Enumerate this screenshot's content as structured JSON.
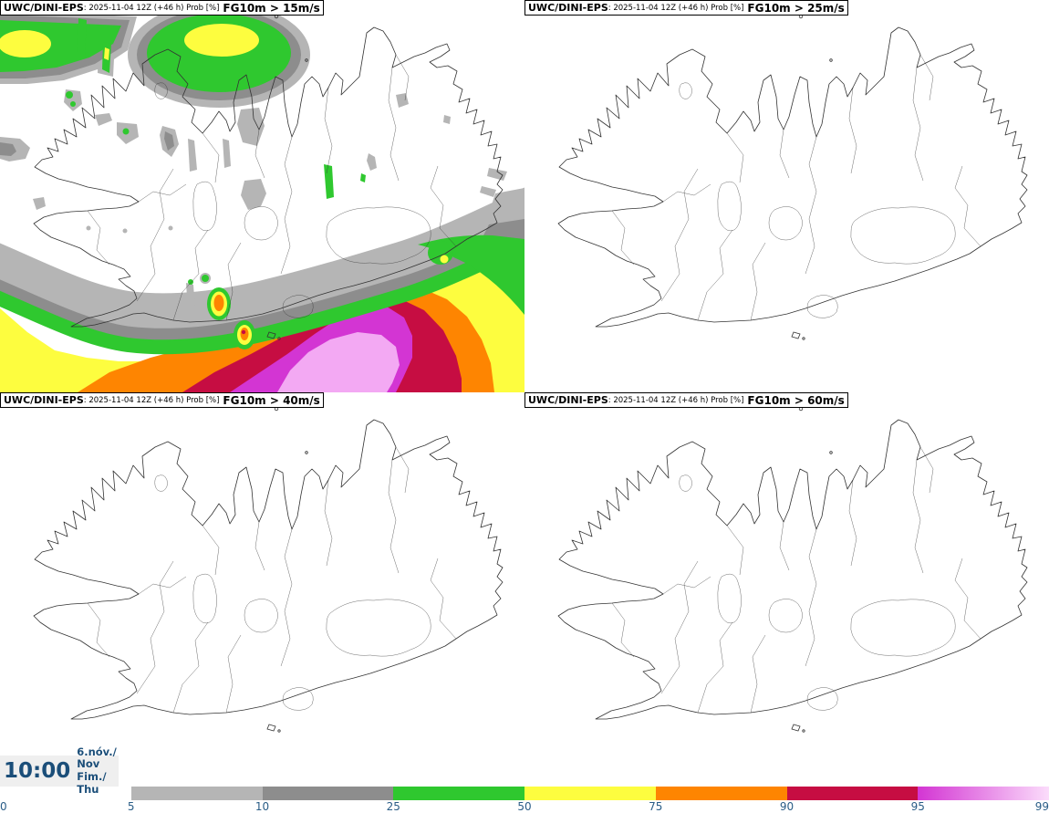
{
  "colors": {
    "light_gray": "#b5b5b5",
    "dark_gray": "#8d8d8d",
    "green": "#2fc82f",
    "yellow": "#fdfd3f",
    "orange": "#fe8501",
    "crimson": "#c60d42",
    "magenta": "#d335d3",
    "pink_light": "#f3a9f3",
    "pink_pale": "#fbdcfb",
    "tick_text": "#2a5d87",
    "clock_text": "#1b4e79",
    "clock_bg": "#efefef",
    "map_line": "#333333"
  },
  "shared_header": {
    "model": "UWC/DINI-EPS",
    "run_info": ": 2025-11-04 12Z (+46 h) Prob [%]"
  },
  "panels": [
    {
      "threshold": "FG10m > 15m/s"
    },
    {
      "threshold": "FG10m > 25m/s"
    },
    {
      "threshold": "FG10m > 40m/s"
    },
    {
      "threshold": "FG10m > 60m/s"
    }
  ],
  "clock": {
    "time": "10:00",
    "date_local": "6.nóv./ Nov",
    "date_english": "Fim./ Thu"
  },
  "colorbar": {
    "ticks": [
      "0",
      "5",
      "10",
      "25",
      "50",
      "75",
      "90",
      "95",
      "99"
    ],
    "segments": [
      {
        "range": "5-10",
        "color_key": "light_gray"
      },
      {
        "range": "10-25",
        "color_key": "dark_gray"
      },
      {
        "range": "25-50",
        "color_key": "green"
      },
      {
        "range": "50-75",
        "color_key": "yellow"
      },
      {
        "range": "75-90",
        "color_key": "orange"
      },
      {
        "range": "90-95",
        "color_key": "crimson"
      },
      {
        "range": "95-99",
        "color_key": "magenta",
        "gradient_to": "pink_pale"
      }
    ]
  }
}
